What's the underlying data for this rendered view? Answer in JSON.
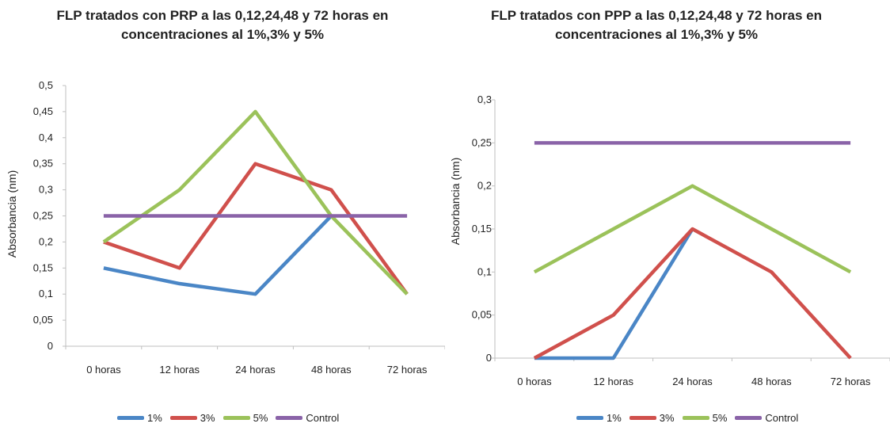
{
  "chart_data": [
    {
      "type": "line",
      "title": "FLP tratados con PRP a las 0,12,24,48 y 72 horas en\nconcentraciones al 1%,3% y 5%",
      "ylabel": "Absorbancia (nm)",
      "xlabel": "",
      "categories": [
        "0 horas",
        "12 horas",
        "24 horas",
        "48 horas",
        "72 horas"
      ],
      "ylim": [
        0,
        0.5
      ],
      "yticks": [
        "0",
        "0,05",
        "0,1",
        "0,15",
        "0,2",
        "0,25",
        "0,3",
        "0,35",
        "0,4",
        "0,45",
        "0,5"
      ],
      "grid": false,
      "legend_position": "bottom",
      "series": [
        {
          "name": "1%",
          "color": "#4a86c6",
          "values": [
            0.15,
            0.12,
            0.1,
            0.25,
            null
          ]
        },
        {
          "name": "3%",
          "color": "#d0504c",
          "values": [
            0.2,
            0.15,
            0.35,
            0.3,
            0.1
          ]
        },
        {
          "name": "5%",
          "color": "#9bc25a",
          "values": [
            0.2,
            0.3,
            0.45,
            0.25,
            0.1
          ]
        },
        {
          "name": "Control",
          "color": "#8a63a8",
          "values": [
            0.25,
            0.25,
            0.25,
            0.25,
            0.25
          ]
        }
      ]
    },
    {
      "type": "line",
      "title": "FLP tratados con PPP a las 0,12,24,48 y 72 horas en\nconcentraciones al 1%,3% y 5%",
      "ylabel": "Absorbancia (nm)",
      "xlabel": "",
      "categories": [
        "0 horas",
        "12 horas",
        "24 horas",
        "48 horas",
        "72 horas"
      ],
      "ylim": [
        0,
        0.3
      ],
      "yticks": [
        "0",
        "0,05",
        "0,1",
        "0,15",
        "0,2",
        "0,25",
        "0,3"
      ],
      "grid": false,
      "legend_position": "bottom",
      "series": [
        {
          "name": "1%",
          "color": "#4a86c6",
          "values": [
            0,
            0,
            0.15,
            null,
            null
          ]
        },
        {
          "name": "3%",
          "color": "#d0504c",
          "values": [
            0,
            0.05,
            0.15,
            0.1,
            0
          ]
        },
        {
          "name": "5%",
          "color": "#9bc25a",
          "values": [
            0.1,
            0.15,
            0.2,
            0.15,
            0.1
          ]
        },
        {
          "name": "Control",
          "color": "#8a63a8",
          "values": [
            0.25,
            0.25,
            0.25,
            0.25,
            0.25
          ]
        }
      ]
    }
  ]
}
